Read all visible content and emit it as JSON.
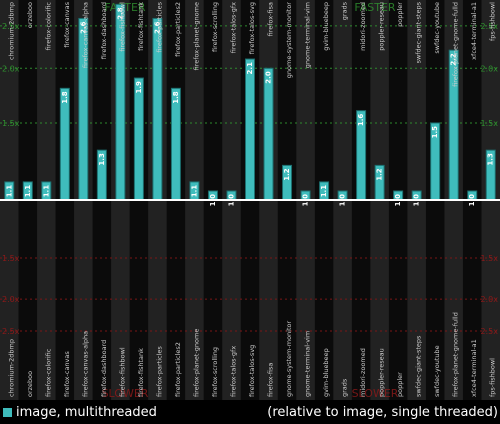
{
  "chart_data": {
    "type": "bar",
    "orientation": "vertical",
    "scale": "log",
    "baseline": 1.0,
    "ylim_top": [
      1.0,
      2.8
    ],
    "ylim_bottom": [
      0.35,
      1.0
    ],
    "top_ticks": [
      "1.5x",
      "2.0x",
      "2.5x"
    ],
    "bottom_ticks": [
      "1.5x",
      "2.0x",
      "2.5x"
    ],
    "top_tick_values": [
      1.5,
      2.0,
      2.5
    ],
    "bottom_tick_values": [
      0.6667,
      0.5,
      0.4
    ],
    "top_region_label": "FASTER",
    "bottom_region_label": "SLOWER",
    "categories": [
      "chromium-2dbmp",
      "orzeboo",
      "firefox-colorific",
      "firefox-canvas",
      "firefox-canvas-alpha",
      "firefox-dashboard",
      "firefox-fishbowl",
      "firefox-fishtank",
      "firefox-particles",
      "firefox-particles2",
      "firefox-planet-gnome",
      "firefox-scrolling",
      "firefox-talos-gfx",
      "firefox-talos-svg",
      "firefox-fisa",
      "gnome-system-monitor",
      "gnome-terminal-vim",
      "gvim-bluebeep",
      "grads",
      "midori-zoomed",
      "poppler-reseau",
      "poppler",
      "swfdec-giant-steps",
      "swfdec-youtube",
      "firefox-planet-gnome-fulld",
      "xfce4-terminal-a1",
      "fps-fishbowl"
    ],
    "series": [
      {
        "name": "image, multithreaded",
        "values": [
          1.1,
          1.1,
          1.1,
          1.8,
          2.6,
          1.3,
          2.8,
          1.9,
          2.6,
          1.8,
          1.1,
          1.0,
          1.0,
          2.1,
          2.0,
          1.2,
          1.0,
          1.1,
          1.0,
          1.6,
          1.2,
          1.0,
          1.0,
          1.5,
          2.2,
          1.0,
          1.3
        ],
        "labels": [
          "1.1",
          "1.1",
          "1.1",
          "1.8",
          "2.6",
          "1.3",
          "2.8",
          "1.9",
          "2.6",
          "1.8",
          "1.1",
          "1.0",
          "1.0",
          "2.1",
          "2.0",
          "1.2",
          "1.0",
          "1.1",
          "1.0",
          "1.6",
          "1.2",
          "1.0",
          "1.0",
          "1.5",
          "2.2",
          "1.0",
          "1.3"
        ]
      }
    ],
    "legend": "bottom-left",
    "grid": true,
    "colors": {
      "bar": "#3fbcbc",
      "bar_edge": "#1c6e6e",
      "bg_dark": "#0b0b0b",
      "bg_light": "#222222",
      "faster_grid": "#2e8a2e",
      "slower_grid": "#7a1616",
      "faster_text": "#2f8f2f",
      "slower_text": "#8a1a1a"
    }
  },
  "legend": {
    "series_label": "image, multithreaded",
    "note": "(relative to image, single threaded)"
  }
}
